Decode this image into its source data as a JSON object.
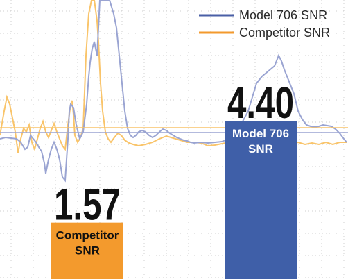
{
  "chart_data": {
    "type": "bar",
    "categories": [
      "Competitor SNR",
      "Model 706 SNR"
    ],
    "values": [
      1.57,
      4.4
    ],
    "value_labels": [
      "1.57",
      "4.40"
    ],
    "bar_labels": [
      [
        "Competitor",
        "SNR"
      ],
      [
        "Model 706",
        "SNR"
      ]
    ],
    "bar_colors": [
      "#f39a2d",
      "#3f5fa8"
    ],
    "ylim": [
      0,
      5
    ],
    "grid": true,
    "background_traces": [
      {
        "name": "Model 706 SNR",
        "color": "#9aa4d2"
      },
      {
        "name": "Competitor SNR",
        "color": "#f9c46a"
      }
    ],
    "legend": {
      "position": "top-right",
      "entries": [
        {
          "label": "Model 706 SNR",
          "color": "#4a5fa6"
        },
        {
          "label": "Competitor SNR",
          "color": "#f39a2d"
        }
      ]
    }
  }
}
